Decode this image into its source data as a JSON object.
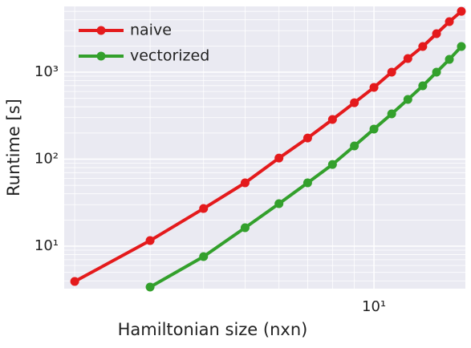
{
  "chart_data": {
    "type": "line",
    "xlabel": "Hamiltonian size (nxn)",
    "ylabel": "Runtime [s]",
    "xscale": "log",
    "yscale": "log",
    "grid": true,
    "legend": "upper left",
    "xlim": [
      1.89,
      16.35
    ],
    "ylim": [
      3.25,
      5700
    ],
    "xticks": [
      {
        "value": 10,
        "label": "10¹"
      }
    ],
    "xminor_ticks": [
      2,
      3,
      4,
      5,
      6,
      7,
      8,
      9
    ],
    "yticks": [
      {
        "value": 10,
        "label": "10¹"
      },
      {
        "value": 100,
        "label": "10²"
      },
      {
        "value": 1000,
        "label": "10³"
      }
    ],
    "yminor_ticks": [
      4,
      5,
      6,
      7,
      8,
      9,
      20,
      30,
      40,
      50,
      60,
      70,
      80,
      90,
      200,
      300,
      400,
      500,
      600,
      700,
      800,
      900,
      2000,
      3000,
      4000,
      5000
    ],
    "series": [
      {
        "name": "naive",
        "color": "#e41a1c",
        "x": [
          2,
          3,
          4,
          5,
          6,
          7,
          8,
          9,
          10,
          11,
          12,
          13,
          14,
          15,
          16
        ],
        "values": [
          3.93,
          11.6,
          27.1,
          53.5,
          103,
          175,
          286,
          446,
          668,
          1000,
          1435,
          1973,
          2770,
          3810,
          5010
        ]
      },
      {
        "name": "vectorized",
        "color": "#33a02c",
        "x": [
          3,
          4,
          5,
          6,
          7,
          8,
          9,
          10,
          11,
          12,
          13,
          14,
          15,
          16
        ],
        "values": [
          3.39,
          7.59,
          16.3,
          30.8,
          53.5,
          87,
          142,
          222,
          332,
          486,
          697,
          1000,
          1403,
          1973
        ]
      }
    ]
  }
}
